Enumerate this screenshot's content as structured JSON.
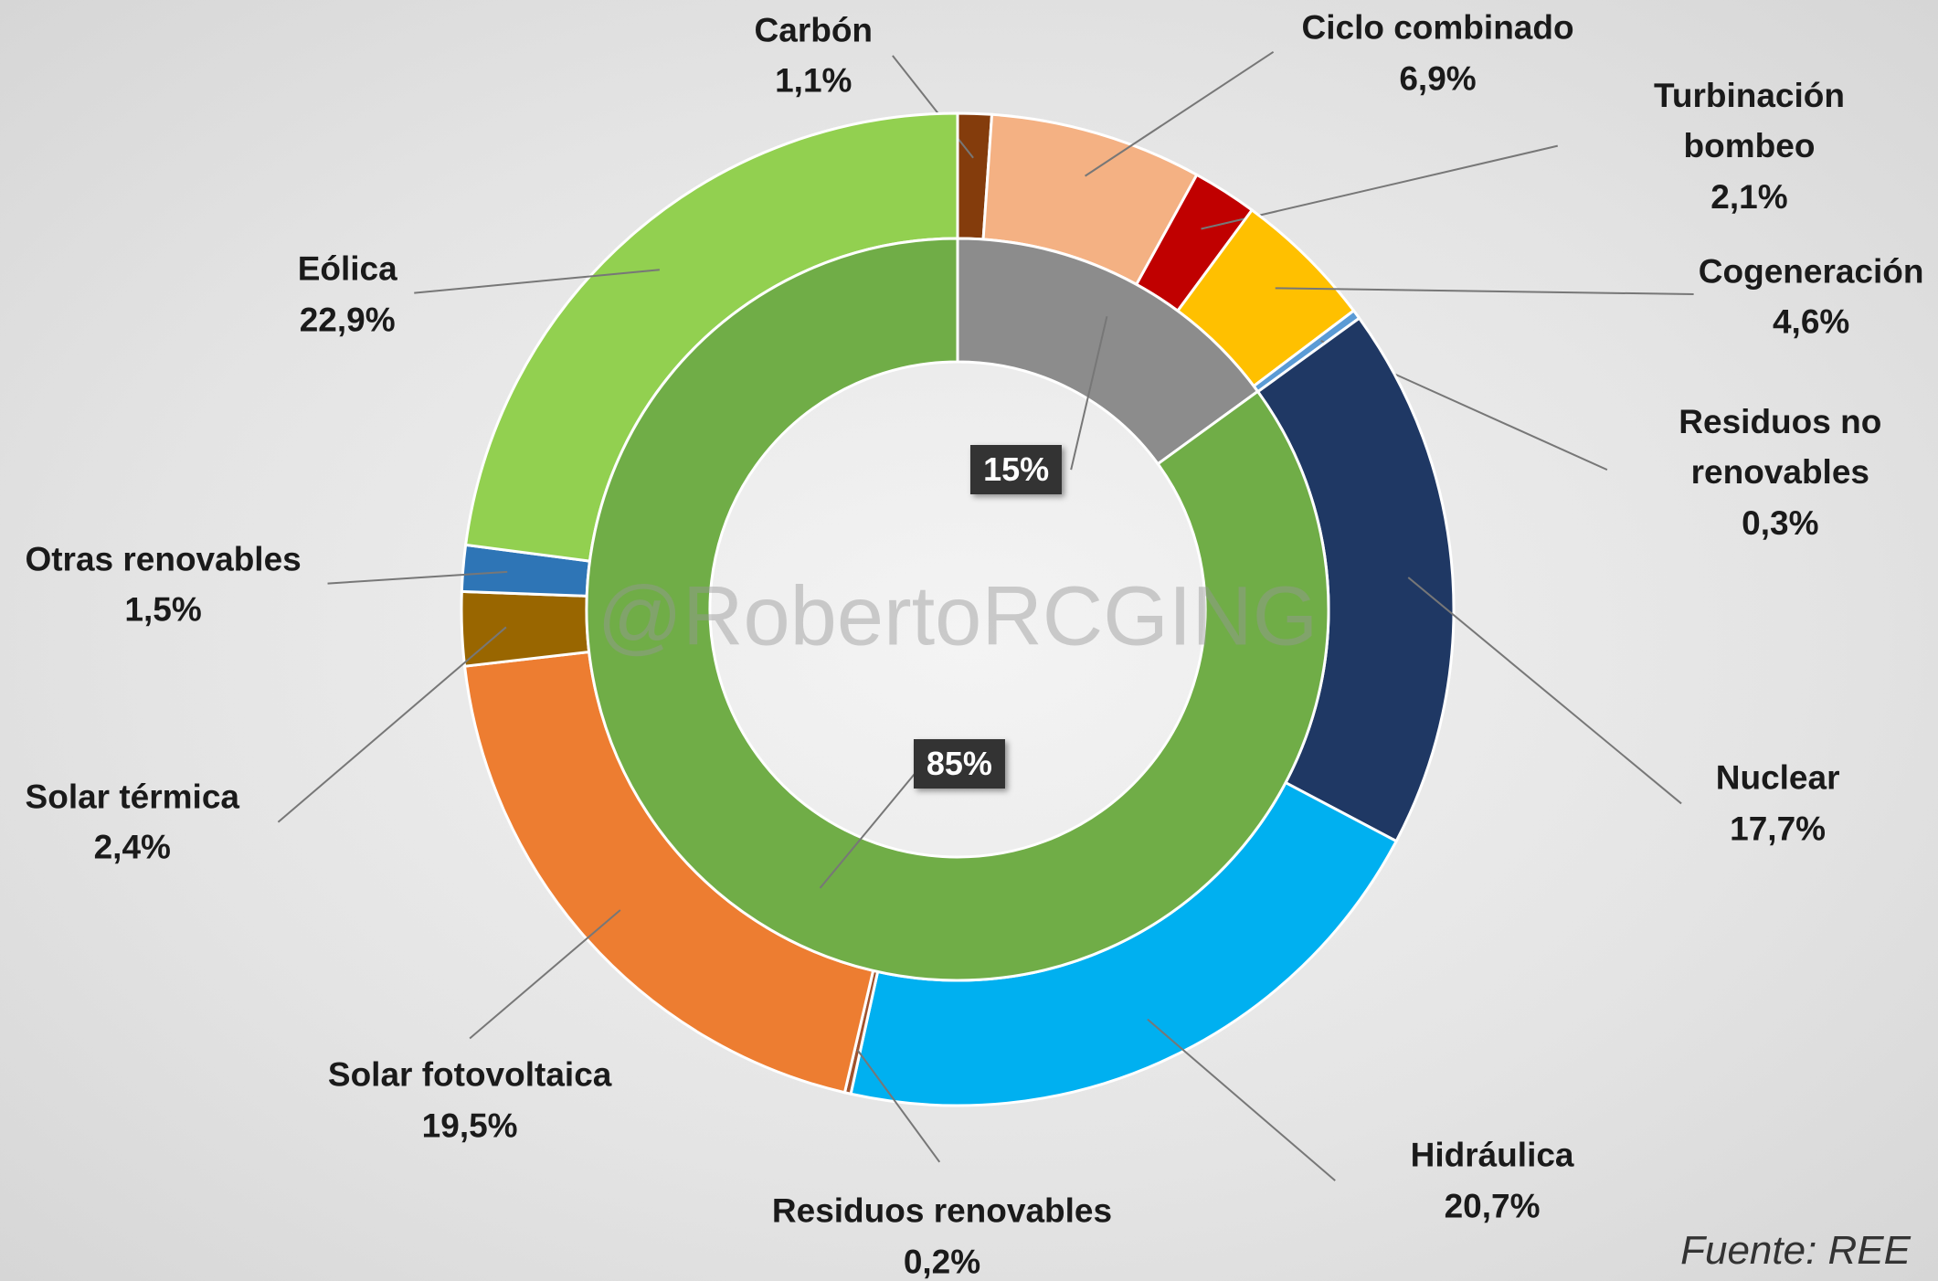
{
  "chart_data": {
    "type": "donut",
    "watermark": "@RobertoRCGING",
    "source": "Fuente: REE",
    "series": [
      {
        "name": "Outer",
        "categories": [
          "Carbón",
          "Ciclo combinado",
          "Turbinación bombeo",
          "Cogeneración",
          "Residuos no renovables",
          "Nuclear",
          "Hidráulica",
          "Residuos renovables",
          "Solar fotovoltaica",
          "Solar térmica",
          "Otras renovables",
          "Eólica"
        ],
        "values": [
          1.1,
          6.9,
          2.1,
          4.6,
          0.3,
          17.7,
          20.7,
          0.2,
          19.5,
          2.4,
          1.5,
          22.9
        ],
        "value_labels": [
          "1,1%",
          "6,9%",
          "2,1%",
          "4,6%",
          "0,3%",
          "17,7%",
          "20,7%",
          "0,2%",
          "19,5%",
          "2,4%",
          "1,5%",
          "22,9%"
        ],
        "colors": [
          "#843c0c",
          "#f4b183",
          "#c00000",
          "#ffc000",
          "#5b9bd5",
          "#1f3864",
          "#00b0f0",
          "#a0522d",
          "#ed7d31",
          "#996600",
          "#2e75b6",
          "#92d050"
        ]
      },
      {
        "name": "Inner",
        "values": [
          15,
          85
        ],
        "value_labels": [
          "15%",
          "85%"
        ],
        "colors": [
          "#8c8c8c",
          "#70ad47"
        ]
      }
    ]
  }
}
